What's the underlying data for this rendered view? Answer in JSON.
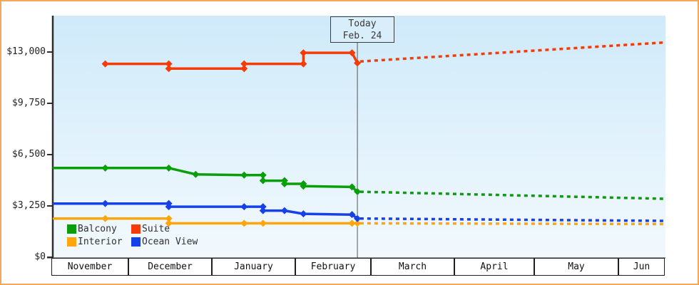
{
  "today_box": {
    "line1": "Today",
    "line2": "Feb. 24"
  },
  "legend": {
    "items": [
      {
        "label": "Balcony",
        "color": "#0a9e0a"
      },
      {
        "label": "Suite",
        "color": "#f53b08"
      },
      {
        "label": "Interior",
        "color": "#ffa60f"
      },
      {
        "label": "Ocean View",
        "color": "#1641e8"
      }
    ]
  },
  "chart_data": {
    "type": "line",
    "title": "",
    "ylim": [
      0,
      15300
    ],
    "grid": false,
    "legend_position": "bottom-left",
    "yticks": [
      {
        "label": "$0",
        "value": 0
      },
      {
        "label": "$3,250",
        "value": 3250
      },
      {
        "label": "$6,500",
        "value": 6500
      },
      {
        "label": "$9,750",
        "value": 9750
      },
      {
        "label": "$13,000",
        "value": 13000
      }
    ],
    "months": [
      "November",
      "December",
      "January",
      "February",
      "March",
      "April",
      "May",
      "Jun"
    ],
    "today": {
      "month_index": 3,
      "day": 24
    },
    "series": [
      {
        "name": "Interior",
        "color": "#ffa60f",
        "points": [
          [
            0,
            2,
            2450,
            0
          ],
          [
            0,
            22,
            2450
          ],
          [
            1,
            16,
            2450
          ],
          [
            1,
            16,
            2150
          ],
          [
            2,
            13,
            2150
          ],
          [
            2,
            20,
            2150
          ],
          [
            3,
            22,
            2150
          ],
          [
            3,
            24,
            2150
          ]
        ],
        "forecast": [
          [
            3,
            25,
            2150
          ],
          [
            7,
            18,
            2100
          ]
        ]
      },
      {
        "name": "Ocean View",
        "color": "#1641e8",
        "points": [
          [
            0,
            2,
            3400,
            0
          ],
          [
            0,
            22,
            3400
          ],
          [
            1,
            16,
            3400
          ],
          [
            1,
            16,
            3200
          ],
          [
            2,
            13,
            3200
          ],
          [
            2,
            20,
            3200
          ],
          [
            2,
            20,
            2950
          ],
          [
            2,
            28,
            2950
          ],
          [
            3,
            4,
            2750
          ],
          [
            3,
            22,
            2700
          ],
          [
            3,
            24,
            2450
          ]
        ],
        "forecast": [
          [
            3,
            25,
            2450
          ],
          [
            7,
            18,
            2300
          ]
        ]
      },
      {
        "name": "Balcony",
        "color": "#0a9e0a",
        "points": [
          [
            0,
            2,
            5650,
            0
          ],
          [
            0,
            22,
            5650
          ],
          [
            1,
            16,
            5650
          ],
          [
            1,
            26,
            5250
          ],
          [
            2,
            13,
            5200
          ],
          [
            2,
            20,
            5200
          ],
          [
            2,
            20,
            4850
          ],
          [
            2,
            28,
            4850
          ],
          [
            2,
            28,
            4650
          ],
          [
            3,
            4,
            4650
          ],
          [
            3,
            4,
            4500
          ],
          [
            3,
            22,
            4450
          ],
          [
            3,
            24,
            4150
          ]
        ],
        "forecast": [
          [
            3,
            25,
            4150
          ],
          [
            7,
            18,
            3700
          ]
        ]
      },
      {
        "name": "Suite",
        "color": "#f53b08",
        "points": [
          [
            0,
            22,
            12250
          ],
          [
            1,
            16,
            12250
          ],
          [
            1,
            16,
            11950
          ],
          [
            2,
            13,
            11950
          ],
          [
            2,
            13,
            12250
          ],
          [
            3,
            4,
            12250
          ],
          [
            3,
            4,
            12950
          ],
          [
            3,
            22,
            12950
          ],
          [
            3,
            24,
            12300
          ]
        ],
        "forecast": [
          [
            3,
            25,
            12400
          ],
          [
            7,
            18,
            13600
          ]
        ]
      }
    ]
  }
}
